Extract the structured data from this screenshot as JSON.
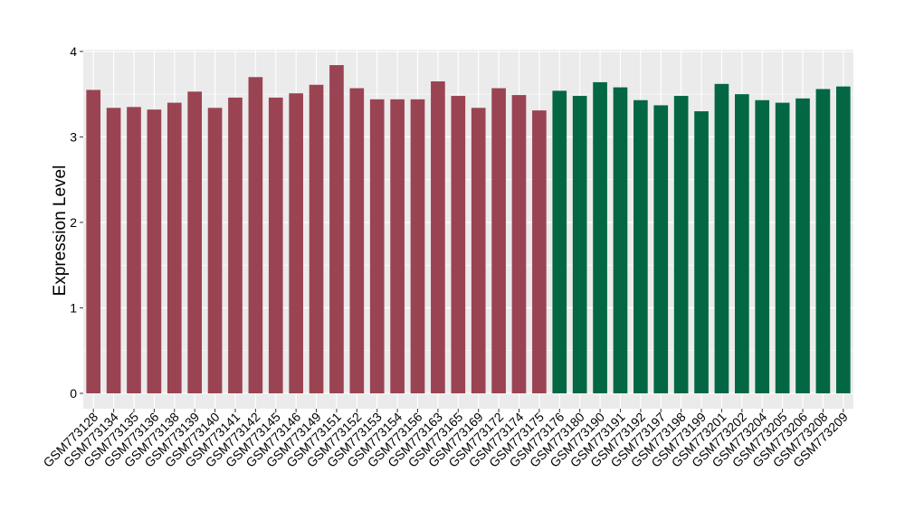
{
  "chart_data": {
    "type": "bar",
    "ylabel": "Expression Level",
    "xlabel": "",
    "ylim": [
      -0.18,
      4.02
    ],
    "yticks": [
      "0",
      "1",
      "2",
      "3",
      "4"
    ],
    "grid": true,
    "categories": [
      "GSM773128",
      "GSM773134",
      "GSM773135",
      "GSM773136",
      "GSM773138",
      "GSM773139",
      "GSM773140",
      "GSM773141",
      "GSM773142",
      "GSM773145",
      "GSM773146",
      "GSM773149",
      "GSM773151",
      "GSM773152",
      "GSM773153",
      "GSM773154",
      "GSM773156",
      "GSM773163",
      "GSM773165",
      "GSM773169",
      "GSM773172",
      "GSM773174",
      "GSM773175",
      "GSM773176",
      "GSM773180",
      "GSM773190",
      "GSM773191",
      "GSM773192",
      "GSM773197",
      "GSM773198",
      "GSM773199",
      "GSM773201",
      "GSM773202",
      "GSM773204",
      "GSM773205",
      "GSM773206",
      "GSM773208",
      "GSM773209"
    ],
    "values": [
      3.55,
      3.34,
      3.35,
      3.32,
      3.4,
      3.53,
      3.34,
      3.46,
      3.7,
      3.46,
      3.51,
      3.61,
      3.84,
      3.57,
      3.44,
      3.44,
      3.44,
      3.65,
      3.48,
      3.34,
      3.57,
      3.49,
      3.31,
      3.54,
      3.48,
      3.64,
      3.58,
      3.43,
      3.37,
      3.48,
      3.3,
      3.62,
      3.5,
      3.43,
      3.4,
      3.45,
      3.56,
      3.59
    ],
    "group_sizes": [
      23,
      15
    ],
    "colors": {
      "group_1": "#9a4453",
      "group_2": "#046744",
      "panel": "#ebebeb",
      "grid": "#ffffff"
    }
  }
}
